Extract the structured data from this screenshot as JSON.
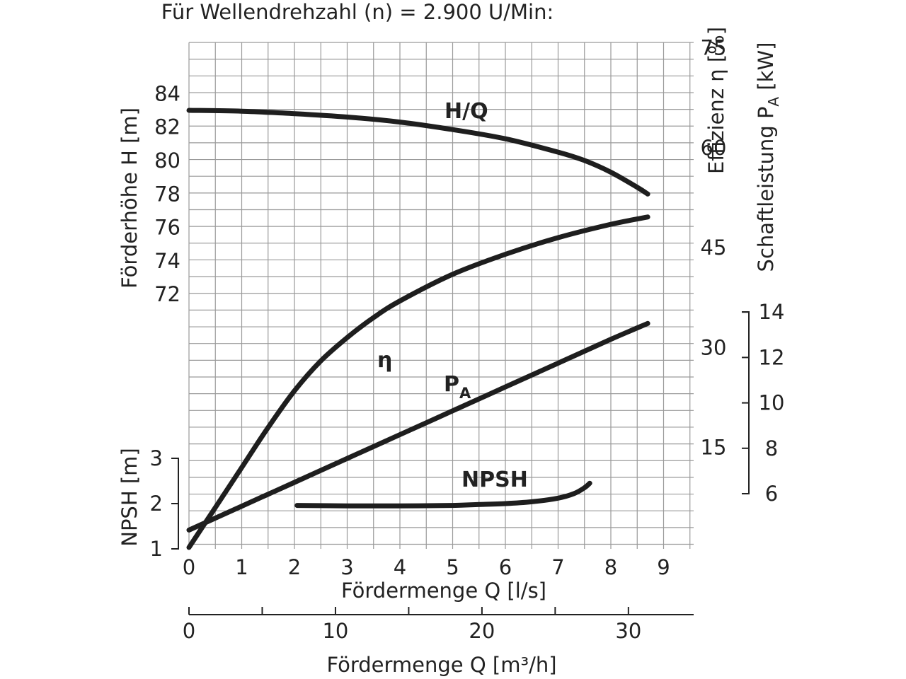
{
  "chart_data": {
    "type": "line",
    "title": "Für Wellendrehzahl (n) = 2.900 U/Min:",
    "x_axis": {
      "label": "Fördermenge Q [l/s]",
      "range": [
        0,
        9.5
      ],
      "ticks": [
        0,
        1,
        2,
        3,
        4,
        5,
        6,
        7,
        8,
        9
      ],
      "tick_labels": [
        "0",
        "1",
        "2",
        "3",
        "4",
        "5",
        "6",
        "7",
        "8",
        "9"
      ]
    },
    "x2_axis": {
      "label": "Fördermenge Q [m³/h]",
      "range": [
        0,
        34.2
      ],
      "ticks": [
        0,
        5,
        10,
        15,
        20,
        25,
        30
      ],
      "label_ticks": [
        0,
        10,
        20,
        30
      ],
      "tick_labels": [
        "0",
        "10",
        "20",
        "30"
      ]
    },
    "y_left_H": {
      "label": "Förderhöhe H [m]",
      "ticks": [
        72,
        74,
        76,
        78,
        80,
        82,
        84
      ],
      "tick_labels": [
        "72",
        "74",
        "76",
        "78",
        "80",
        "82",
        "84"
      ]
    },
    "y_left_NPSH": {
      "label": "NPSH [m]",
      "ticks": [
        1,
        2,
        3
      ],
      "tick_labels": [
        "1",
        "2",
        "3"
      ]
    },
    "y_right_eta": {
      "label": "Effizienz η [%]",
      "ticks": [
        15,
        30,
        45,
        60,
        75
      ],
      "tick_labels": [
        "15",
        "30",
        "45",
        "60",
        "75"
      ]
    },
    "y_right_PA": {
      "label_main": "Schaftleistung P",
      "label_sub": "A",
      "label_end": " [kW]",
      "ticks": [
        6,
        8,
        10,
        12,
        14
      ],
      "tick_labels": [
        "6",
        "8",
        "10",
        "12",
        "14"
      ]
    },
    "grid": true,
    "series": [
      {
        "name": "H/Q",
        "axis": "y_left_H",
        "x": [
          0,
          1,
          2,
          3,
          4,
          5,
          6,
          7,
          7.5,
          8,
          8.5,
          8.7
        ],
        "y": [
          83.0,
          82.95,
          82.8,
          82.6,
          82.3,
          81.85,
          81.3,
          80.5,
          80.0,
          79.3,
          78.4,
          78.0
        ]
      },
      {
        "name": "η",
        "axis": "y_right_eta",
        "x": [
          0,
          0.5,
          1,
          1.5,
          2,
          2.5,
          3,
          3.5,
          4,
          5,
          6,
          7,
          8,
          8.7
        ],
        "y": [
          0,
          6,
          12,
          18,
          23.5,
          28,
          31.5,
          34.5,
          37,
          41,
          44,
          46.5,
          48.5,
          49.6
        ]
      },
      {
        "name_main": "P",
        "name_sub": "A",
        "axis": "y_right_PA",
        "x": [
          0,
          1,
          2,
          3,
          4,
          5,
          6,
          7,
          8,
          8.7
        ],
        "y": [
          4.4,
          5.45,
          6.5,
          7.55,
          8.6,
          9.65,
          10.7,
          11.75,
          12.8,
          13.5
        ]
      },
      {
        "name": "NPSH",
        "axis": "y_left_NPSH",
        "x": [
          2.05,
          3,
          4,
          5,
          5.5,
          6,
          6.5,
          7,
          7.3,
          7.5,
          7.6
        ],
        "y": [
          1.96,
          1.95,
          1.95,
          1.96,
          1.98,
          2.0,
          2.04,
          2.12,
          2.22,
          2.35,
          2.45
        ]
      }
    ]
  }
}
